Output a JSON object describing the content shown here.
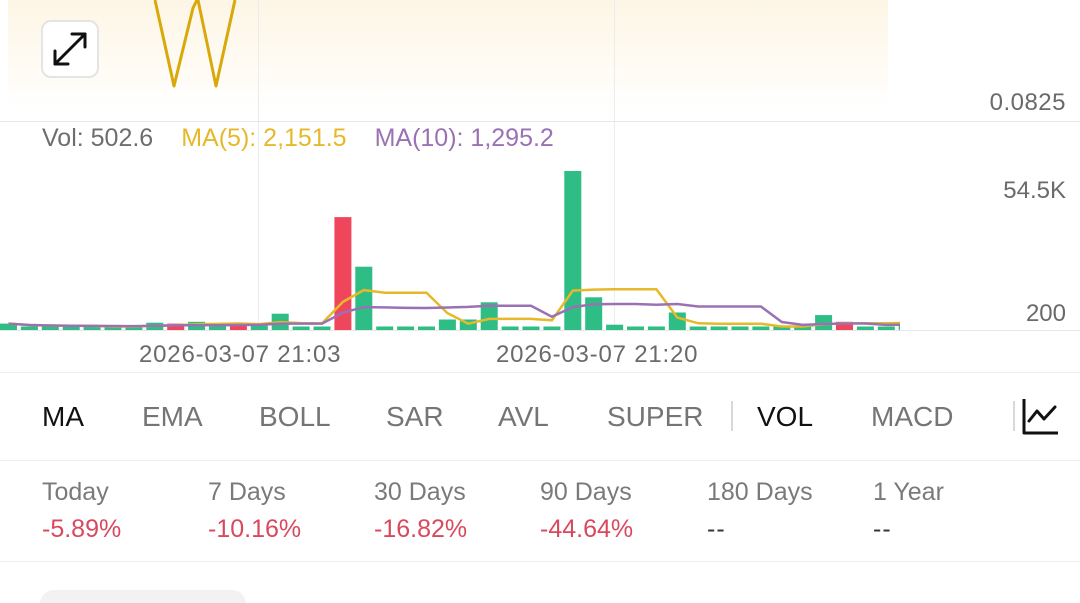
{
  "price_chart": {
    "price_axis_label": "0.0825",
    "expand_icon": "expand-arrows-icon",
    "line_color": "#d9a90c"
  },
  "volume": {
    "legend": {
      "vol": "Vol: 502.6",
      "ma5": "MA(5): 2,151.5",
      "ma10": "MA(10): 1,295.2"
    },
    "axis_top": "54.5K",
    "axis_bottom": "200",
    "x_labels": [
      "2026-03-07 21:03",
      "2026-03-07 21:20"
    ],
    "colors": {
      "up": "#2ebd85",
      "down": "#f0465c",
      "ma5": "#e6b92a",
      "ma10": "#9a72b4"
    }
  },
  "chart_data": {
    "type": "bar",
    "ylim": [
      200,
      54500
    ],
    "series": [
      {
        "name": "Vol",
        "values": [
          2200,
          1200,
          1200,
          1200,
          1200,
          1200,
          1200,
          2500,
          2200,
          2800,
          1800,
          1800,
          1500,
          5600,
          1200,
          1200,
          38700,
          21700,
          1200,
          1200,
          1200,
          3600,
          3600,
          9500,
          1200,
          1200,
          1200,
          54500,
          11200,
          1800,
          1200,
          1200,
          6000,
          1200,
          1200,
          1200,
          1200,
          1200,
          1200,
          5100,
          2800,
          1200,
          1200,
          1800,
          1200
        ],
        "colors": [
          "up",
          "up",
          "up",
          "up",
          "up",
          "up",
          "up",
          "up",
          "down",
          "up",
          "up",
          "down",
          "up",
          "up",
          "up",
          "up",
          "down",
          "up",
          "up",
          "up",
          "up",
          "up",
          "up",
          "up",
          "up",
          "up",
          "up",
          "up",
          "up",
          "up",
          "up",
          "up",
          "up",
          "up",
          "up",
          "up",
          "up",
          "up",
          "up",
          "up",
          "down",
          "up",
          "up",
          "up",
          "up"
        ]
      }
    ]
  },
  "indicators": {
    "tabs": [
      "MA",
      "EMA",
      "BOLL",
      "SAR",
      "AVL",
      "SUPER",
      "VOL",
      "MACD"
    ],
    "chart_settings_icon": "line-chart-icon"
  },
  "performance": [
    {
      "label": "Today",
      "value": "-5.89%"
    },
    {
      "label": "7 Days",
      "value": "-10.16%"
    },
    {
      "label": "30 Days",
      "value": "-16.82%"
    },
    {
      "label": "90 Days",
      "value": "-44.64%"
    },
    {
      "label": "180 Days",
      "value": "--"
    },
    {
      "label": "1 Year",
      "value": "--"
    }
  ]
}
